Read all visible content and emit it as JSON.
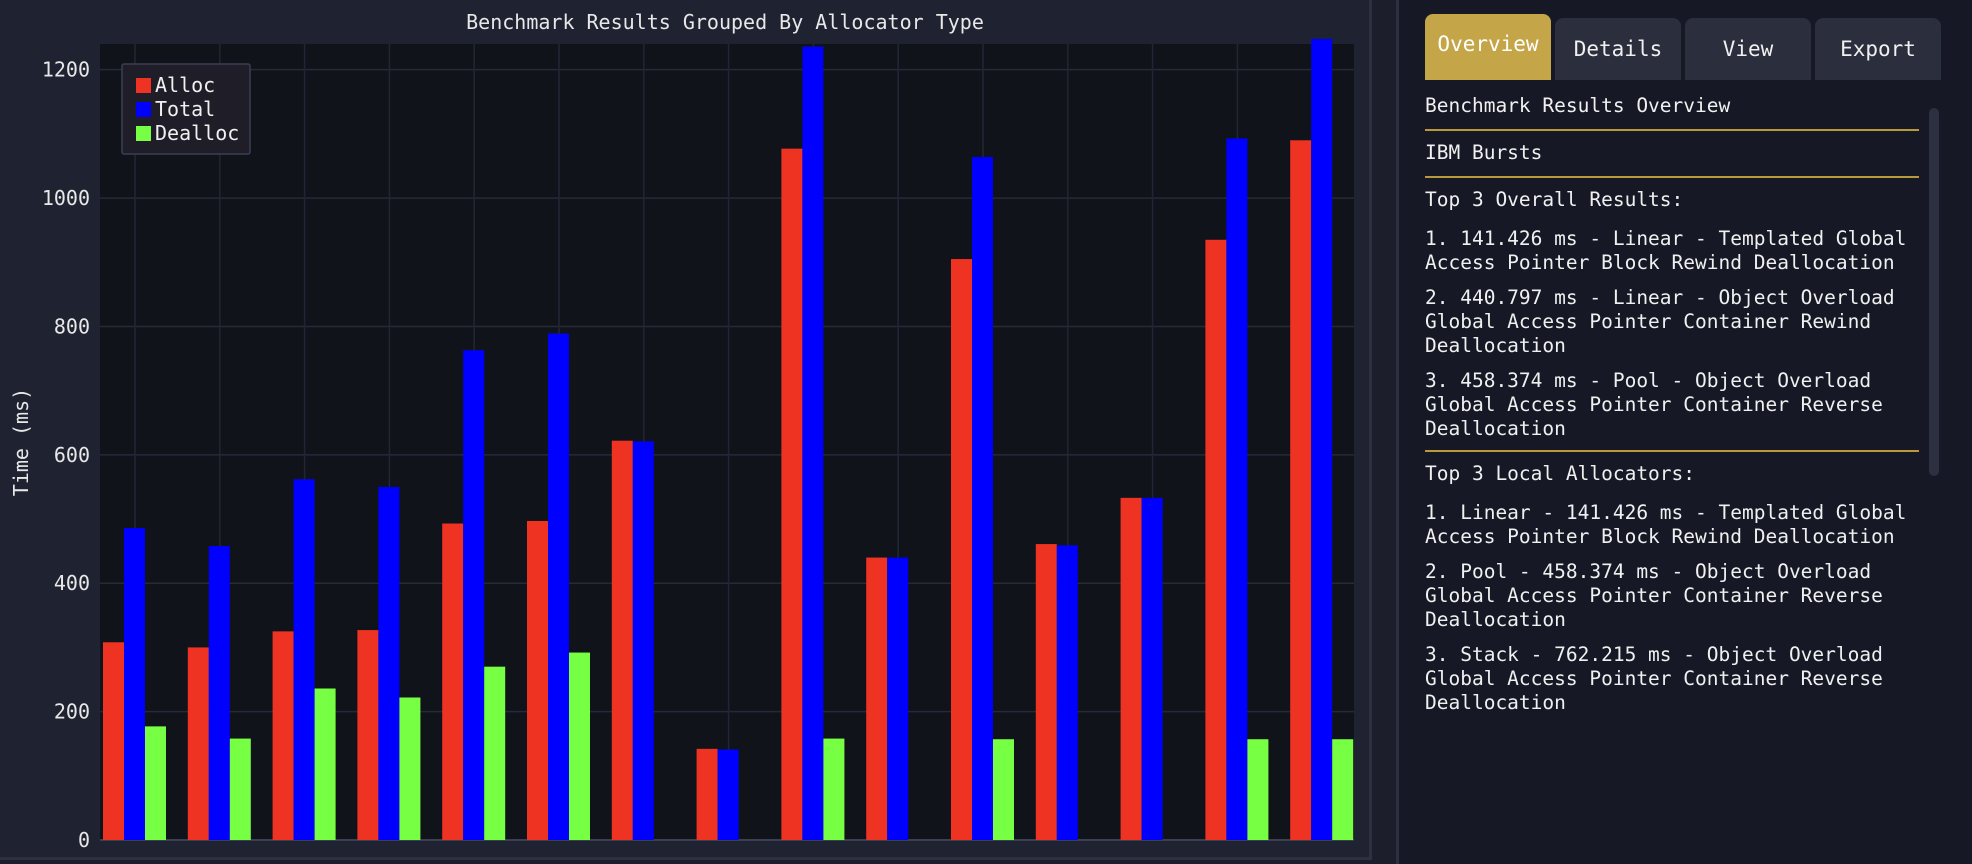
{
  "chart_data": {
    "type": "bar",
    "title": "Benchmark Results Grouped By Allocator Type",
    "xlabel": "",
    "ylabel": "Time (ms)",
    "ylim": [
      0,
      1240
    ],
    "yticks": [
      0,
      200,
      400,
      600,
      800,
      1000,
      1200
    ],
    "grid": true,
    "legend_position": "top-left",
    "groups": 15,
    "series": [
      {
        "name": "Alloc",
        "color": "#ee3322",
        "values": [
          308,
          300,
          325,
          327,
          493,
          497,
          622,
          142,
          1077,
          440,
          905,
          461,
          533,
          935,
          1090
        ]
      },
      {
        "name": "Total",
        "color": "#0000ff",
        "values": [
          486,
          458,
          562,
          550,
          763,
          789,
          621,
          141,
          1236,
          440,
          1064,
          459,
          533,
          1093,
          1248
        ]
      },
      {
        "name": "Dealloc",
        "color": "#77ff44",
        "values": [
          177,
          158,
          236,
          222,
          270,
          292,
          null,
          null,
          158,
          null,
          157,
          null,
          null,
          157,
          157
        ]
      }
    ]
  },
  "panel": {
    "tabs": [
      {
        "label": "Overview",
        "active": true
      },
      {
        "label": "Details",
        "active": false
      },
      {
        "label": "View",
        "active": false
      },
      {
        "label": "Export",
        "active": false
      }
    ],
    "heading": "Benchmark Results Overview",
    "subheading": "IBM Bursts",
    "overall_title": "Top 3 Overall Results:",
    "overall": [
      "1. 141.426 ms - Linear - Templated Global Access Pointer Block Rewind Deallocation",
      "2. 440.797 ms - Linear - Object Overload Global Access Pointer Container Rewind Deallocation",
      "3. 458.374 ms - Pool - Object Overload Global Access Pointer Container Reverse Deallocation"
    ],
    "local_title": "Top 3 Local Allocators:",
    "local": [
      "1. Linear - 141.426 ms - Templated Global Access Pointer Block Rewind Deallocation",
      "2. Pool - 458.374 ms - Object Overload Global Access Pointer Container Reverse Deallocation",
      "3. Stack - 762.215 ms - Object Overload Global Access Pointer Container Reverse Deallocation"
    ]
  },
  "colors": {
    "accent": "#c4a648",
    "plot_bg": "#11131b",
    "panel_bg": "#1f2230"
  }
}
